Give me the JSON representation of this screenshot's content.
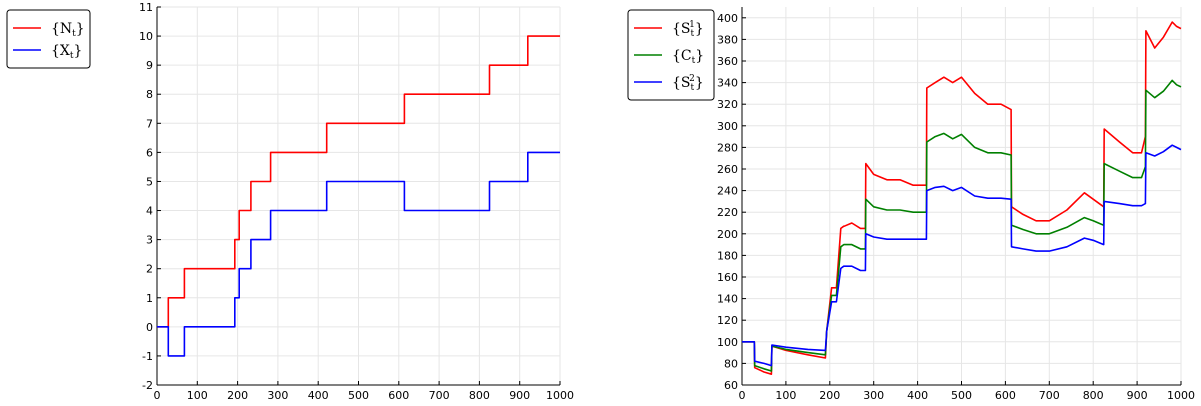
{
  "chart_data": [
    {
      "type": "line",
      "title": "",
      "xlabel": "",
      "ylabel": "",
      "xlim": [
        0,
        1000
      ],
      "ylim": [
        -2,
        11
      ],
      "x_ticks": [
        0,
        100,
        200,
        300,
        400,
        500,
        600,
        700,
        800,
        900,
        1000
      ],
      "y_ticks": [
        -2,
        -1,
        0,
        1,
        2,
        3,
        4,
        5,
        6,
        7,
        8,
        9,
        10,
        11
      ],
      "x_tick_labels": [
        "0",
        "100",
        "200",
        "300",
        "400",
        "500",
        "600",
        "700",
        "800",
        "900",
        "1000"
      ],
      "y_tick_labels": [
        "-2",
        "-1",
        "0",
        "1",
        "2",
        "3",
        "4",
        "5",
        "6",
        "7",
        "8",
        "9",
        "10",
        "11"
      ],
      "grid": true,
      "legend_position": "outside-top-left",
      "step": true,
      "series": [
        {
          "name": "{Nt}",
          "legend_base": "{N",
          "legend_sub": "t",
          "legend_close": "}",
          "color": "#ff0000",
          "x": [
            0,
            28,
            68,
            193,
            204,
            233,
            282,
            421,
            614,
            825,
            920,
            1000
          ],
          "y": [
            0,
            1,
            2,
            3,
            4,
            5,
            6,
            7,
            8,
            9,
            10,
            10
          ]
        },
        {
          "name": "{Xt}",
          "legend_base": "{X",
          "legend_sub": "t",
          "legend_close": "}",
          "color": "#0000ff",
          "x": [
            0,
            28,
            68,
            193,
            204,
            233,
            282,
            421,
            614,
            825,
            920,
            1000
          ],
          "y": [
            0,
            -1,
            0,
            1,
            2,
            3,
            4,
            5,
            4,
            5,
            6,
            6
          ]
        }
      ]
    },
    {
      "type": "line",
      "title": "",
      "xlabel": "",
      "ylabel": "",
      "xlim": [
        0,
        1000
      ],
      "ylim": [
        60,
        410
      ],
      "x_ticks": [
        0,
        100,
        200,
        300,
        400,
        500,
        600,
        700,
        800,
        900,
        1000
      ],
      "y_ticks": [
        60,
        80,
        100,
        120,
        140,
        160,
        180,
        200,
        220,
        240,
        260,
        280,
        300,
        320,
        340,
        360,
        380,
        400
      ],
      "x_tick_labels": [
        "0",
        "100",
        "200",
        "300",
        "400",
        "500",
        "600",
        "700",
        "800",
        "900",
        "1000"
      ],
      "y_tick_labels": [
        "60",
        "80",
        "100",
        "120",
        "140",
        "160",
        "180",
        "200",
        "220",
        "240",
        "260",
        "280",
        "300",
        "320",
        "340",
        "360",
        "380",
        "400"
      ],
      "grid": true,
      "legend_position": "outside-top-left",
      "series": [
        {
          "name": "{St1}",
          "legend_base": "{S",
          "legend_sub": "t",
          "legend_sup": "1",
          "legend_close": "}",
          "color": "#ff0000",
          "x": [
            0,
            28,
            29,
            50,
            67,
            68,
            100,
            150,
            190,
            193,
            204,
            215,
            225,
            232,
            233,
            250,
            270,
            281,
            282,
            300,
            330,
            360,
            390,
            420,
            421,
            440,
            460,
            480,
            500,
            530,
            560,
            590,
            613,
            614,
            640,
            670,
            700,
            740,
            780,
            800,
            824,
            825,
            860,
            890,
            910,
            919,
            920,
            940,
            960,
            980,
            990,
            1000
          ],
          "y": [
            100,
            100,
            76,
            72,
            70,
            96,
            92,
            88,
            85,
            110,
            150,
            150,
            205,
            207,
            207,
            210,
            205,
            205,
            265,
            255,
            250,
            250,
            245,
            245,
            335,
            340,
            345,
            340,
            345,
            330,
            320,
            320,
            315,
            225,
            218,
            212,
            212,
            222,
            238,
            232,
            225,
            297,
            285,
            275,
            275,
            290,
            388,
            372,
            382,
            396,
            392,
            390
          ]
        },
        {
          "name": "{Ct}",
          "legend_base": "{C",
          "legend_sub": "t",
          "legend_close": "}",
          "color": "#008000",
          "x": [
            0,
            28,
            29,
            50,
            67,
            68,
            100,
            150,
            190,
            193,
            204,
            215,
            225,
            232,
            233,
            250,
            270,
            281,
            282,
            300,
            330,
            360,
            390,
            420,
            421,
            440,
            460,
            480,
            500,
            530,
            560,
            590,
            613,
            614,
            640,
            670,
            700,
            740,
            780,
            800,
            824,
            825,
            860,
            890,
            910,
            919,
            920,
            940,
            960,
            980,
            990,
            1000
          ],
          "y": [
            100,
            100,
            78,
            75,
            73,
            96,
            93,
            90,
            88,
            110,
            143,
            143,
            188,
            190,
            190,
            190,
            186,
            186,
            232,
            225,
            222,
            222,
            220,
            220,
            285,
            290,
            293,
            288,
            292,
            280,
            275,
            275,
            273,
            208,
            204,
            200,
            200,
            206,
            215,
            212,
            208,
            265,
            258,
            252,
            252,
            262,
            333,
            326,
            332,
            342,
            338,
            336
          ]
        },
        {
          "name": "{St2}",
          "legend_base": "{S",
          "legend_sub": "t",
          "legend_sup": "2",
          "legend_close": "}",
          "color": "#0000ff",
          "x": [
            0,
            28,
            29,
            50,
            67,
            68,
            100,
            150,
            190,
            193,
            204,
            215,
            225,
            232,
            233,
            250,
            270,
            281,
            282,
            300,
            330,
            360,
            390,
            420,
            421,
            440,
            460,
            480,
            500,
            530,
            560,
            590,
            613,
            614,
            640,
            670,
            700,
            740,
            780,
            800,
            824,
            825,
            860,
            890,
            910,
            919,
            920,
            940,
            960,
            980,
            990,
            1000
          ],
          "y": [
            100,
            100,
            82,
            80,
            78,
            97,
            95,
            93,
            92,
            110,
            137,
            137,
            168,
            170,
            170,
            170,
            166,
            166,
            200,
            197,
            195,
            195,
            195,
            195,
            240,
            243,
            244,
            240,
            243,
            235,
            233,
            233,
            232,
            188,
            186,
            184,
            184,
            188,
            196,
            194,
            190,
            230,
            228,
            226,
            226,
            228,
            275,
            272,
            276,
            282,
            280,
            278
          ]
        }
      ]
    }
  ]
}
